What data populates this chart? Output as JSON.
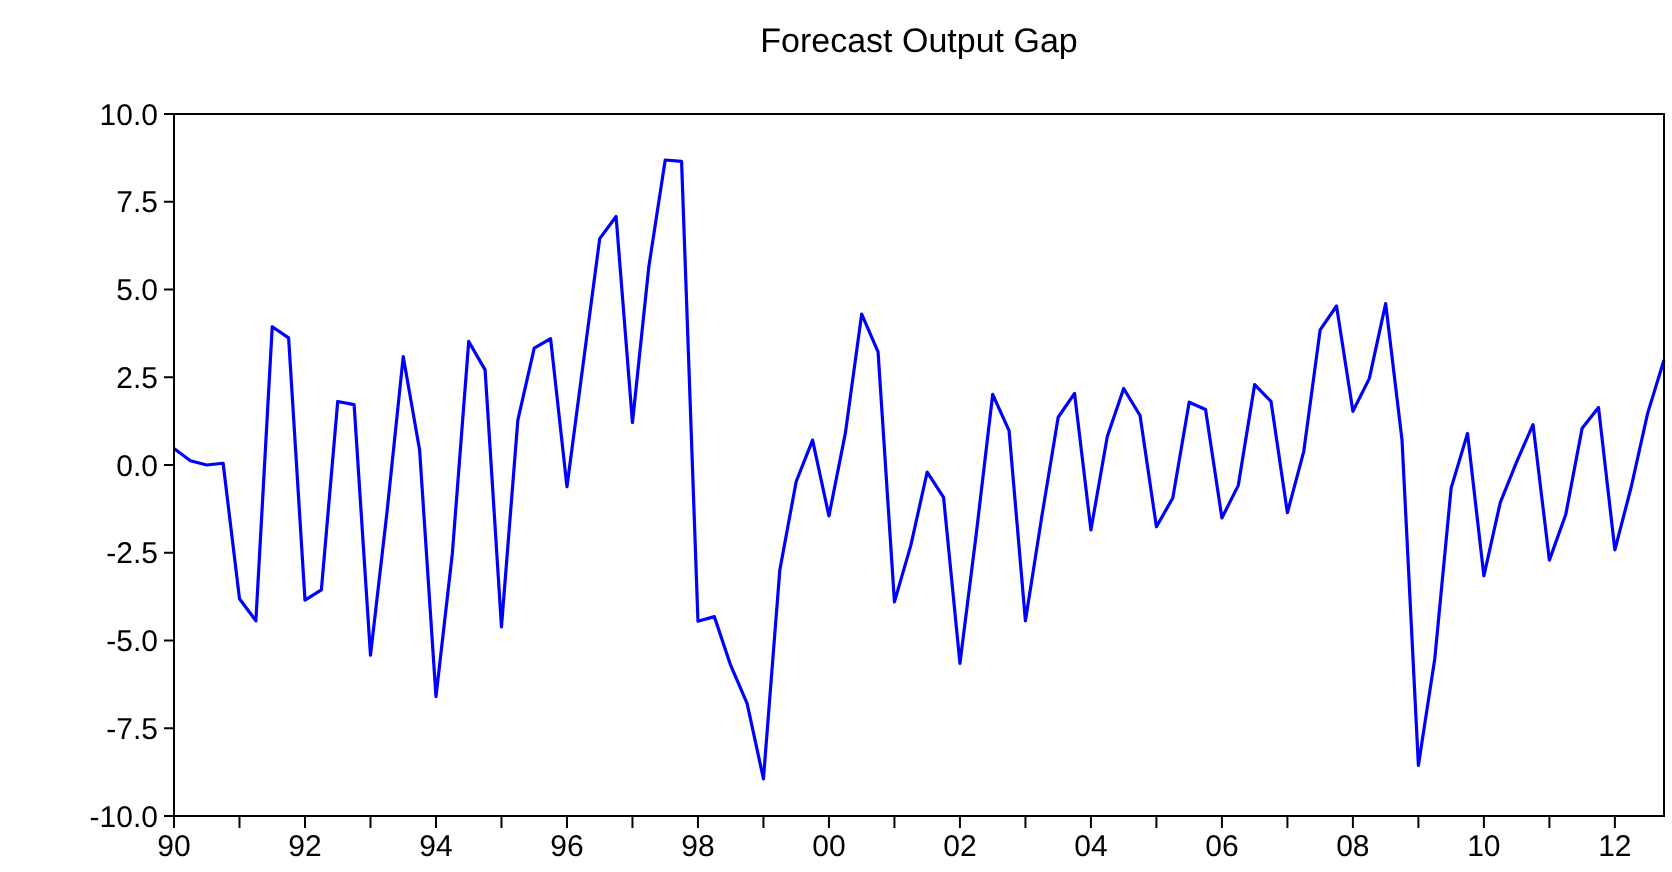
{
  "chart_data": {
    "type": "line",
    "title": "Forecast Output Gap",
    "x": [
      1990,
      1990.25,
      1990.5,
      1990.75,
      1991,
      1991.25,
      1991.5,
      1991.75,
      1992,
      1992.25,
      1992.5,
      1992.75,
      1993,
      1993.25,
      1993.5,
      1993.75,
      1994,
      1994.25,
      1994.5,
      1994.75,
      1995,
      1995.25,
      1995.5,
      1995.75,
      1996,
      1996.25,
      1996.5,
      1996.75,
      1997,
      1997.25,
      1997.5,
      1997.75,
      1998,
      1998.25,
      1998.5,
      1998.75,
      1999,
      1999.25,
      1999.5,
      1999.75,
      2000,
      2000.25,
      2000.5,
      2000.75,
      2001,
      2001.25,
      2001.5,
      2001.75,
      2002,
      2002.25,
      2002.5,
      2002.75,
      2003,
      2003.25,
      2003.5,
      2003.75,
      2004,
      2004.25,
      2004.5,
      2004.75,
      2005,
      2005.25,
      2005.5,
      2005.75,
      2006,
      2006.25,
      2006.5,
      2006.75,
      2007,
      2007.25,
      2007.5,
      2007.75,
      2008,
      2008.25,
      2008.5,
      2008.75,
      2009,
      2009.25,
      2009.5,
      2009.75,
      2010,
      2010.25,
      2010.5,
      2010.75,
      2011,
      2011.25,
      2011.5,
      2011.75,
      2012,
      2012.25,
      2012.5,
      2012.75
    ],
    "series": [
      {
        "color": "#0000ff",
        "values": [
          0.47,
          0.12,
          0.0,
          0.05,
          -3.81,
          -4.44,
          3.94,
          3.62,
          -3.85,
          -3.56,
          1.81,
          1.72,
          -5.42,
          -1.38,
          3.09,
          0.43,
          -6.6,
          -2.52,
          3.52,
          2.71,
          -4.61,
          1.28,
          3.33,
          3.6,
          -0.62,
          2.92,
          6.45,
          7.08,
          1.21,
          5.65,
          8.69,
          8.65,
          -4.45,
          -4.32,
          -5.71,
          -6.79,
          -8.94,
          -2.99,
          -0.47,
          0.71,
          -1.45,
          0.9,
          4.3,
          3.22,
          -3.9,
          -2.29,
          -0.2,
          -0.92,
          -5.65,
          -1.95,
          2.01,
          0.98,
          -4.44,
          -1.47,
          1.36,
          2.04,
          -1.85,
          0.81,
          2.18,
          1.41,
          -1.76,
          -0.94,
          1.79,
          1.58,
          -1.51,
          -0.58,
          2.29,
          1.81,
          -1.36,
          0.39,
          3.85,
          4.53,
          1.53,
          2.46,
          4.6,
          0.71,
          -8.56,
          -5.52,
          -0.66,
          0.9,
          -3.16,
          -1.07,
          0.09,
          1.15,
          -2.71,
          -1.41,
          1.05,
          1.64,
          -2.42,
          -0.62,
          1.47,
          2.99
        ]
      }
    ],
    "xlim": [
      1990,
      2012.75
    ],
    "xticks": [
      {
        "value": 1990,
        "label": "90"
      },
      {
        "value": 1991,
        "label": null
      },
      {
        "value": 1992,
        "label": "92"
      },
      {
        "value": 1993,
        "label": null
      },
      {
        "value": 1994,
        "label": "94"
      },
      {
        "value": 1995,
        "label": null
      },
      {
        "value": 1996,
        "label": "96"
      },
      {
        "value": 1997,
        "label": null
      },
      {
        "value": 1998,
        "label": "98"
      },
      {
        "value": 1999,
        "label": null
      },
      {
        "value": 2000,
        "label": "00"
      },
      {
        "value": 2001,
        "label": null
      },
      {
        "value": 2002,
        "label": "02"
      },
      {
        "value": 2003,
        "label": null
      },
      {
        "value": 2004,
        "label": "04"
      },
      {
        "value": 2005,
        "label": null
      },
      {
        "value": 2006,
        "label": "06"
      },
      {
        "value": 2007,
        "label": null
      },
      {
        "value": 2008,
        "label": "08"
      },
      {
        "value": 2009,
        "label": null
      },
      {
        "value": 2010,
        "label": "10"
      },
      {
        "value": 2011,
        "label": null
      },
      {
        "value": 2012,
        "label": "12"
      }
    ],
    "ylim": [
      -10,
      10
    ],
    "yticks": [
      {
        "value": -10,
        "label": "-10.0"
      },
      {
        "value": -7.5,
        "label": "-7.5"
      },
      {
        "value": -5,
        "label": "-5.0"
      },
      {
        "value": -2.5,
        "label": "-2.5"
      },
      {
        "value": 0,
        "label": "0.0"
      },
      {
        "value": 2.5,
        "label": "2.5"
      },
      {
        "value": 5,
        "label": "5.0"
      },
      {
        "value": 7.5,
        "label": "7.5"
      },
      {
        "value": 10,
        "label": "10.0"
      }
    ]
  }
}
